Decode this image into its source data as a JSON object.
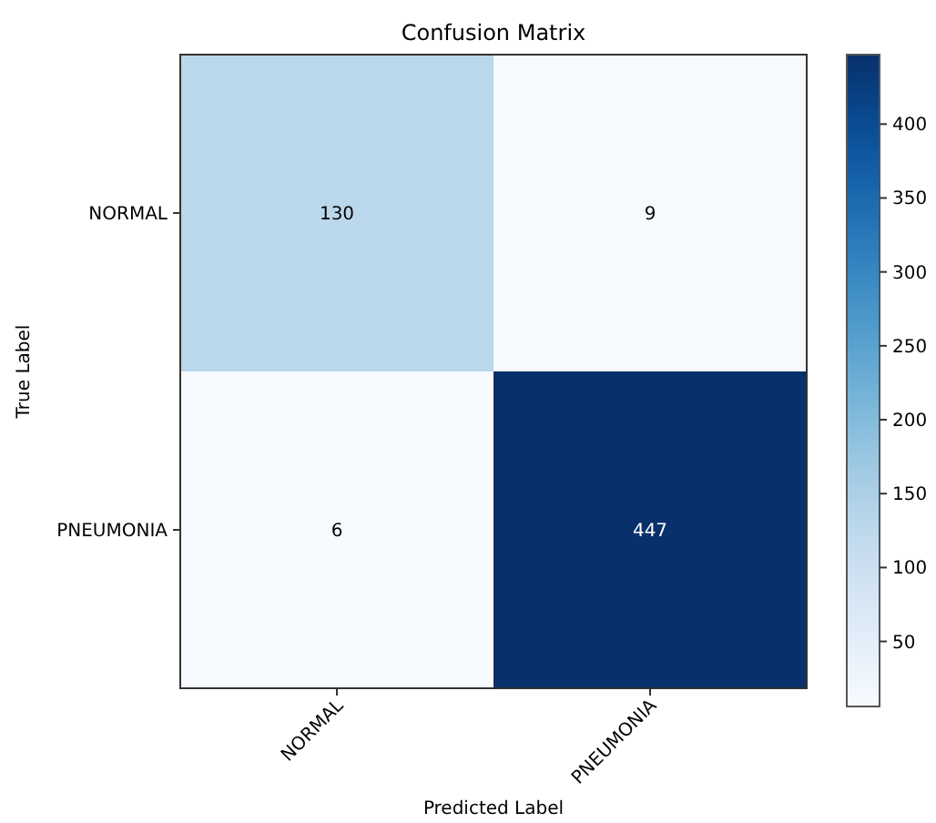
{
  "chart_data": {
    "type": "heatmap",
    "title": "Confusion Matrix",
    "xlabel": "Predicted Label",
    "ylabel": "True Label",
    "categories": [
      "NORMAL",
      "PNEUMONIA"
    ],
    "y_categories": [
      "NORMAL",
      "PNEUMONIA"
    ],
    "cells": [
      [
        130,
        9
      ],
      [
        6,
        447
      ]
    ],
    "data_labels": true,
    "clim": [
      6,
      447
    ],
    "cticks": [
      50,
      100,
      150,
      200,
      250,
      300,
      350,
      400
    ]
  }
}
